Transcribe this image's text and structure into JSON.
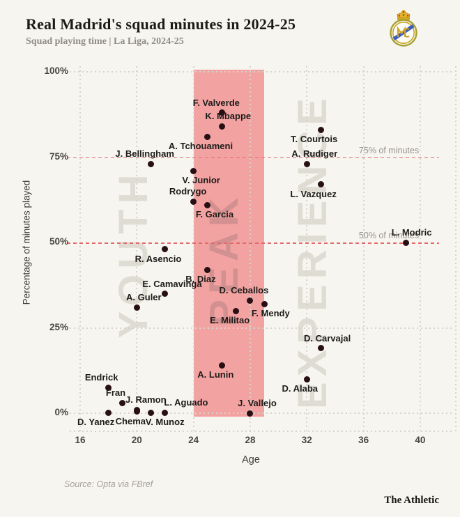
{
  "header": {
    "title": "Real Madrid's squad minutes in 2024-25",
    "subtitle": "Squad playing time | La Liga, 2024-25"
  },
  "footer": {
    "source": "Source: Opta via FBref",
    "brand": "The Athletic"
  },
  "colors": {
    "background": "#f7f5ef",
    "peak_band": "#f3a2a2",
    "reference_line": "#e2696e",
    "grid": "#d6d4cc",
    "dot": "#280f13",
    "watermark": "#dfdcd4"
  },
  "chart_data": {
    "type": "scatter",
    "title": "Real Madrid's squad minutes in 2024-25",
    "xlabel": "Age",
    "ylabel": "Percentage of minutes played",
    "xlim": [
      15,
      42
    ],
    "ylim": [
      0,
      100
    ],
    "grid": true,
    "x_ticks": [
      16,
      20,
      24,
      28,
      32,
      36,
      40
    ],
    "y_ticks": [
      {
        "pct": 100,
        "label": "100%"
      },
      {
        "pct": 75,
        "label": "75%"
      },
      {
        "pct": 50,
        "label": "50%"
      },
      {
        "pct": 25,
        "label": "25%"
      },
      {
        "pct": 0,
        "label": "0%"
      }
    ],
    "peak_band": {
      "x_from": 24,
      "x_to": 29
    },
    "zones": [
      {
        "label": "YOUTH"
      },
      {
        "label": "PEAK"
      },
      {
        "label": "EXPERIENCE"
      }
    ],
    "reference_lines": [
      {
        "pct": 75,
        "label": "75% of minutes"
      },
      {
        "pct": 50,
        "label": "50% of minutes"
      }
    ],
    "points": [
      {
        "name": "F. Valverde",
        "age": 26,
        "pct": 88,
        "label_side": "above",
        "label_dx": -8
      },
      {
        "name": "K. Mbappe",
        "age": 26,
        "pct": 84,
        "label_side": "above",
        "label_dx": 9
      },
      {
        "name": "T. Courtois",
        "age": 33,
        "pct": 83,
        "label_side": "below",
        "label_dx": -10
      },
      {
        "name": "A. Tchouameni",
        "age": 25,
        "pct": 81,
        "label_side": "below",
        "label_dx": -10
      },
      {
        "name": "J. Bellingham",
        "age": 21,
        "pct": 73,
        "label_side": "above",
        "label_dx": -9
      },
      {
        "name": "A. Rudiger",
        "age": 32,
        "pct": 73,
        "label_side": "above",
        "label_dx": 11
      },
      {
        "name": "V. Junior",
        "age": 24,
        "pct": 71,
        "label_side": "below",
        "label_dx": 11
      },
      {
        "name": "L. Vazquez",
        "age": 33,
        "pct": 67,
        "label_side": "below",
        "label_dx": -11
      },
      {
        "name": "Rodrygo",
        "age": 24,
        "pct": 62,
        "label_side": "above",
        "label_dx": -8
      },
      {
        "name": "F. Garcia",
        "age": 25,
        "pct": 61,
        "label_side": "below",
        "label_dx": 10
      },
      {
        "name": "L. Modric",
        "age": 39,
        "pct": 50,
        "label_side": "above",
        "label_dx": 8
      },
      {
        "name": "R. Asencio",
        "age": 22,
        "pct": 48,
        "label_side": "below",
        "label_dx": -10
      },
      {
        "name": "B. Diaz",
        "age": 25,
        "pct": 42,
        "label_side": "below",
        "label_dx": -10
      },
      {
        "name": "E. Camavinga",
        "age": 22,
        "pct": 35,
        "label_side": "above",
        "label_dx": 10
      },
      {
        "name": "D. Ceballos",
        "age": 28,
        "pct": 33,
        "label_side": "above",
        "label_dx": -9
      },
      {
        "name": "F. Mendy",
        "age": 29,
        "pct": 32,
        "label_side": "below",
        "label_dx": 9
      },
      {
        "name": "A. Guler",
        "age": 20,
        "pct": 31,
        "label_side": "above",
        "label_dx": 10
      },
      {
        "name": "E. Militao",
        "age": 27,
        "pct": 30,
        "label_side": "below",
        "label_dx": -9
      },
      {
        "name": "D. Carvajal",
        "age": 33,
        "pct": 19,
        "label_side": "above",
        "label_dx": 9
      },
      {
        "name": "A. Lunin",
        "age": 26,
        "pct": 14,
        "label_side": "below",
        "label_dx": -9
      },
      {
        "name": "D. Alaba",
        "age": 32,
        "pct": 10,
        "label_side": "below",
        "label_dx": -10
      },
      {
        "name": "Endrick",
        "age": 18,
        "pct": 7.5,
        "label_side": "above",
        "label_dx": -10
      },
      {
        "name": "Fran",
        "age": 19,
        "pct": 3,
        "label_side": "above",
        "label_dx": -10
      },
      {
        "name": "J. Ramon",
        "age": 20,
        "pct": 1,
        "label_side": "above",
        "label_dx": 13
      },
      {
        "name": "Chema",
        "age": 20,
        "pct": 0.5,
        "label_side": "below",
        "label_dx": -9
      },
      {
        "name": "D. Yanez",
        "age": 18,
        "pct": 0.2,
        "label_side": "below",
        "label_dx": -18
      },
      {
        "name": "V. Munoz",
        "age": 21,
        "pct": 0.2,
        "label_side": "below",
        "label_dx": 20
      },
      {
        "name": "L. Aguado",
        "age": 22,
        "pct": 0.2,
        "label_side": "above",
        "label_dx": 30
      },
      {
        "name": "J. Vallejo",
        "age": 28,
        "pct": 0,
        "label_side": "above",
        "label_dx": 10
      }
    ]
  }
}
